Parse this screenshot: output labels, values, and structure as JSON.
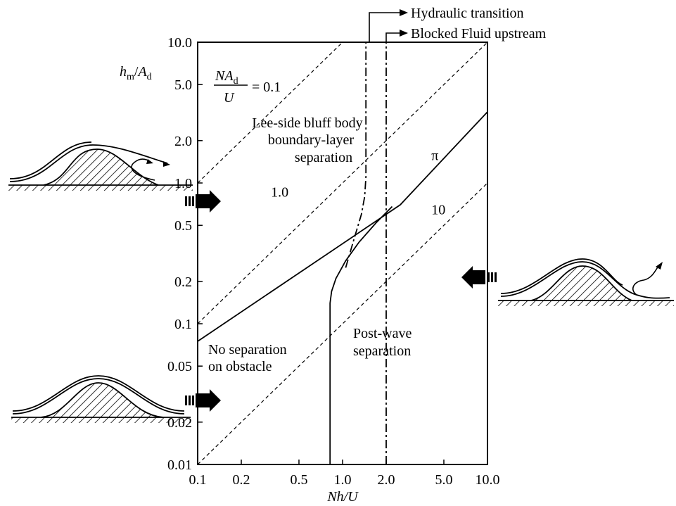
{
  "chart_data": {
    "type": "line",
    "xscale": "log",
    "yscale": "log",
    "xlim": [
      0.1,
      10.0
    ],
    "ylim": [
      0.01,
      10.0
    ],
    "x_ticks": [
      "0.1",
      "0.2",
      "0.5",
      "1.0",
      "2.0",
      "5.0",
      "10.0"
    ],
    "x_tick_values": [
      0.1,
      0.2,
      0.5,
      1.0,
      2.0,
      5.0,
      10.0
    ],
    "y_ticks": [
      "0.01",
      "0.02",
      "0.05",
      "0.1",
      "0.2",
      "0.5",
      "1.0",
      "2.0",
      "5.0",
      "10.0"
    ],
    "y_tick_values": [
      0.01,
      0.02,
      0.05,
      0.1,
      0.2,
      0.5,
      1.0,
      2.0,
      5.0,
      10.0
    ],
    "xlabel": "Nh/U",
    "ylabel": "hm/Ad",
    "ylabel_parts": {
      "h": "h",
      "h_sub": "m",
      "sep": "/",
      "a": "A",
      "a_sub": "d"
    },
    "param_label": {
      "num": "NA",
      "num_sub": "d",
      "den": "U",
      "rest": "= 0.1"
    },
    "series": [
      {
        "style": "dashed",
        "label": "",
        "x": [
          0.1,
          1.0
        ],
        "y": [
          1.0,
          10.0
        ]
      },
      {
        "style": "dashed",
        "label": "1.0",
        "x": [
          0.1,
          10.0
        ],
        "y": [
          0.1,
          10.0
        ]
      },
      {
        "style": "dashed",
        "label": "10",
        "x": [
          0.1,
          10.0
        ],
        "y": [
          0.01,
          1.0
        ]
      },
      {
        "style": "solid",
        "label": "π",
        "x": [
          0.1,
          2.5,
          10.0
        ],
        "y": [
          0.075,
          0.7,
          3.2
        ]
      },
      {
        "style": "solid",
        "label": "",
        "x": [
          0.82,
          0.82,
          0.84,
          0.9,
          1.05,
          1.3,
          1.7,
          2.2
        ],
        "y": [
          0.01,
          0.14,
          0.17,
          0.21,
          0.28,
          0.38,
          0.52,
          0.68
        ]
      },
      {
        "style": "dashdot",
        "label": "",
        "x": [
          1.05,
          1.2,
          1.35,
          1.42,
          1.45,
          1.45
        ],
        "y": [
          0.25,
          0.4,
          0.6,
          0.8,
          1.1,
          10.0
        ]
      },
      {
        "style": "dashdot",
        "label": "",
        "x": [
          2.0,
          2.0
        ],
        "y": [
          0.01,
          10.0
        ]
      }
    ],
    "annotations": {
      "hydraulic": "Hydraulic transition",
      "blocked": "Blocked Fluid upstream",
      "lee_1": "Lee-side bluff body",
      "lee_2": "boundary-layer",
      "lee_3": "separation",
      "no_sep_1": "No separation",
      "no_sep_2": "on obstacle",
      "post_1": "Post-wave",
      "post_2": "separation"
    }
  }
}
